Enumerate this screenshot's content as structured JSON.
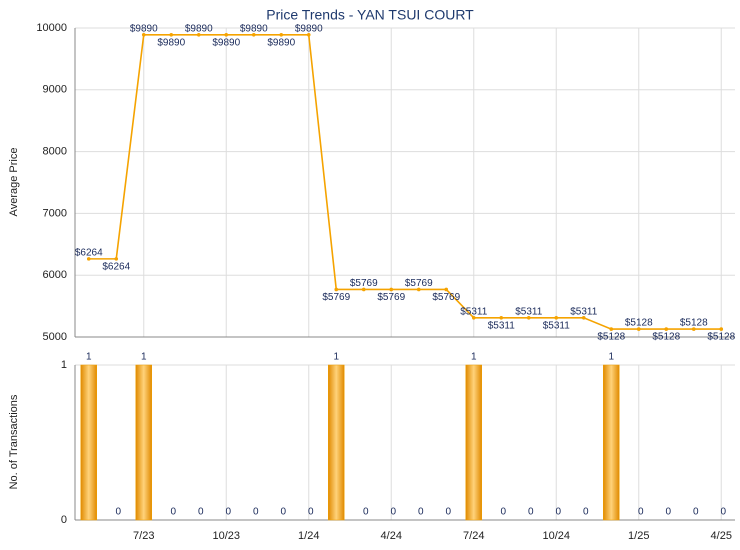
{
  "chart_data": [
    {
      "type": "line",
      "title": "Price Trends - YAN TSUI COURT",
      "y_label": "Average Price",
      "categories": [
        null,
        null,
        "7/23",
        null,
        null,
        "10/23",
        null,
        null,
        "1/24",
        null,
        null,
        "4/24",
        null,
        null,
        "7/24",
        null,
        null,
        "10/24",
        null,
        null,
        "1/25",
        null,
        null,
        "4/25"
      ],
      "series": [
        {
          "name": "Average Price",
          "color": "#f5a300",
          "values": [
            6264,
            6264,
            9890,
            9890,
            9890,
            9890,
            9890,
            9890,
            9890,
            5769,
            5769,
            5769,
            5769,
            5769,
            5311,
            5311,
            5311,
            5311,
            5311,
            5128,
            5128,
            5128,
            5128,
            5128
          ],
          "value_labels": [
            "$6264",
            "$6264",
            "$9890",
            "$9890",
            "$9890",
            "$9890",
            "$9890",
            "$9890",
            "$9890",
            "$5769",
            "$5769",
            "$5769",
            "$5769",
            "$5769",
            "$5311",
            "$5311",
            "$5311",
            "$5311",
            "$5311",
            "$5128",
            "$5128",
            "$5128",
            "$5128",
            "$5128"
          ]
        }
      ],
      "ylim": [
        5000,
        10000
      ],
      "yticks": [
        5000,
        6000,
        7000,
        8000,
        9000,
        10000
      ],
      "grid": true
    },
    {
      "type": "bar",
      "y_label": "No. of Transactions",
      "categories": [
        null,
        null,
        "7/23",
        null,
        null,
        "10/23",
        null,
        null,
        "1/24",
        null,
        null,
        "4/24",
        null,
        null,
        "7/24",
        null,
        null,
        "10/24",
        null,
        null,
        "1/25",
        null,
        null,
        "4/25"
      ],
      "values": [
        1,
        0,
        1,
        0,
        0,
        0,
        0,
        0,
        0,
        1,
        0,
        0,
        0,
        0,
        1,
        0,
        0,
        0,
        0,
        1,
        0,
        0,
        0,
        0
      ],
      "color": "#f0a000",
      "ylim": [
        0,
        1
      ],
      "yticks": [
        0,
        1
      ],
      "grid": true
    }
  ]
}
